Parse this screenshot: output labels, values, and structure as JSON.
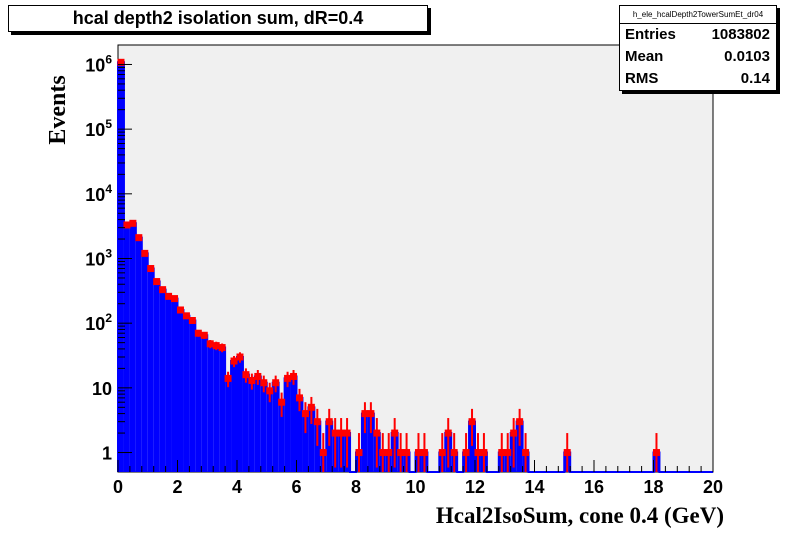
{
  "title": "hcal depth2 isolation sum, dR=0.4",
  "stats": {
    "name": "h_ele_hcalDepth2TowerSumEt_dr04",
    "rows": [
      {
        "label": "Entries",
        "value": "1083802"
      },
      {
        "label": "Mean",
        "value": "0.0103"
      },
      {
        "label": "RMS",
        "value": "0.14"
      }
    ]
  },
  "chart_data": {
    "type": "histogram",
    "title": "hcal depth2 isolation sum, dR=0.4",
    "xlabel": "Hcal2IsoSum, cone 0.4 (GeV)",
    "ylabel": "Events",
    "xlim": [
      0,
      20
    ],
    "ylim": [
      0.5,
      2000000
    ],
    "yscale": "log",
    "bin_width": 0.2,
    "x_ticks": [
      "0",
      "2",
      "4",
      "6",
      "8",
      "10",
      "12",
      "14",
      "16",
      "18",
      "20"
    ],
    "y_ticks": [
      {
        "value": 1,
        "base": "1",
        "exp": ""
      },
      {
        "value": 10,
        "base": "10",
        "exp": ""
      },
      {
        "value": 100,
        "base": "10",
        "exp": "2"
      },
      {
        "value": 1000,
        "base": "10",
        "exp": "3"
      },
      {
        "value": 10000,
        "base": "10",
        "exp": "4"
      },
      {
        "value": 100000,
        "base": "10",
        "exp": "5"
      },
      {
        "value": 1000000,
        "base": "10",
        "exp": "6"
      }
    ],
    "fill_color": "#0000ff",
    "marker_color": "#ff0000",
    "frame_fill": "#f0f0f0",
    "values": [
      1080000,
      3300,
      3500,
      2100,
      1200,
      700,
      440,
      330,
      260,
      240,
      160,
      130,
      110,
      70,
      65,
      48,
      45,
      42,
      14,
      26,
      30,
      16,
      13,
      15,
      12,
      9,
      12,
      6,
      14,
      15,
      7,
      4,
      5,
      3,
      1,
      3,
      2,
      2,
      2,
      0,
      1,
      4,
      4,
      2,
      1,
      1,
      2,
      1,
      1,
      0,
      1,
      1,
      0,
      0,
      1,
      2,
      1,
      0,
      1,
      3,
      1,
      1,
      0,
      0,
      1,
      1,
      2,
      3,
      1,
      0,
      0,
      0,
      0,
      0,
      0,
      1,
      0,
      0,
      0,
      0,
      0,
      0,
      0,
      0,
      0,
      0,
      0,
      0,
      0,
      0,
      1,
      0,
      0,
      0,
      0,
      0,
      0,
      0,
      0,
      0
    ]
  }
}
